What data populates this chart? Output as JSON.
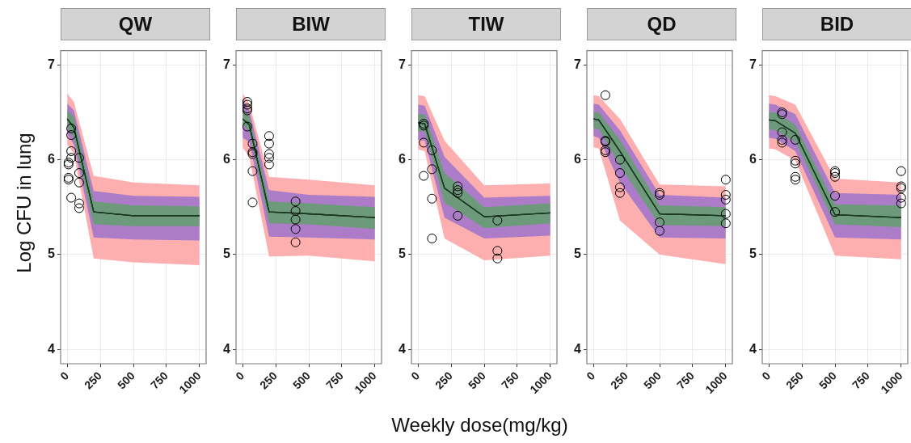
{
  "chart_data": [
    {
      "type": "scatter",
      "title": "QW",
      "ylabel": "Log CFU in lung",
      "xlim": [
        -50,
        1050
      ],
      "xticks": [
        0,
        250,
        500,
        750,
        1000
      ],
      "ylim": [
        3.85,
        7.15
      ],
      "yticks": [
        4,
        5,
        6,
        7
      ],
      "grid": true,
      "series": [
        {
          "type": "line",
          "marker": "none",
          "color": "#1a3a22",
          "x": [
            0,
            50,
            200,
            500,
            1000
          ],
          "values": [
            6.43,
            6.34,
            5.45,
            5.41,
            5.41
          ],
          "lower": [
            6.16,
            6.07,
            4.96,
            4.92,
            4.89
          ],
          "upper": [
            6.7,
            6.61,
            5.83,
            5.76,
            5.73
          ]
        },
        {
          "type": "line",
          "marker": "none",
          "color": "#1a3a22",
          "x": [
            0,
            50,
            200,
            500,
            1000
          ],
          "values": [
            6.43,
            6.34,
            5.45,
            5.41,
            5.41
          ],
          "lower": [
            6.27,
            6.16,
            5.18,
            5.16,
            5.15
          ],
          "upper": [
            6.59,
            6.52,
            5.67,
            5.62,
            5.61
          ]
        },
        {
          "type": "line",
          "marker": "none",
          "color": "#1a3a22",
          "x": [
            0,
            50,
            200,
            500,
            1000
          ],
          "values": [
            6.43,
            6.34,
            5.45,
            5.41,
            5.41
          ],
          "lower": [
            6.34,
            6.23,
            5.32,
            5.3,
            5.3
          ],
          "upper": [
            6.52,
            6.45,
            5.56,
            5.52,
            5.51
          ]
        },
        {
          "type": "scatter",
          "marker": "circle",
          "color": "#000000",
          "x": [
            30,
            30,
            30,
            30,
            10,
            10,
            10,
            10,
            30,
            90,
            90,
            90,
            90,
            90
          ],
          "values": [
            6.33,
            6.26,
            6.09,
            6.02,
            5.97,
            5.95,
            5.81,
            5.79,
            5.6,
            6.02,
            5.86,
            5.76,
            5.54,
            5.49
          ]
        }
      ]
    },
    {
      "type": "scatter",
      "title": "BIW",
      "xlim": [
        -50,
        1050
      ],
      "xticks": [
        0,
        250,
        500,
        750,
        1000
      ],
      "ylim": [
        3.85,
        7.15
      ],
      "yticks": [
        4,
        5,
        6,
        7
      ],
      "grid": true,
      "series": [
        {
          "type": "line",
          "marker": "none",
          "color": "#1a3a22",
          "x": [
            0,
            50,
            200,
            500,
            1000
          ],
          "values": [
            6.43,
            6.37,
            5.45,
            5.43,
            5.39
          ],
          "lower": [
            6.13,
            6.03,
            4.98,
            4.99,
            4.93
          ],
          "upper": [
            6.7,
            6.59,
            5.82,
            5.79,
            5.73
          ]
        },
        {
          "type": "line",
          "marker": "none",
          "color": "#1a3a22",
          "x": [
            0,
            50,
            200,
            500,
            1000
          ],
          "values": [
            6.43,
            6.37,
            5.45,
            5.43,
            5.39
          ],
          "lower": [
            6.23,
            6.19,
            5.19,
            5.18,
            5.16
          ],
          "upper": [
            6.64,
            6.52,
            5.68,
            5.63,
            5.61
          ]
        },
        {
          "type": "line",
          "marker": "none",
          "color": "#1a3a22",
          "x": [
            0,
            50,
            200,
            500,
            1000
          ],
          "values": [
            6.43,
            6.37,
            5.45,
            5.43,
            5.39
          ],
          "lower": [
            6.37,
            6.3,
            5.33,
            5.32,
            5.27
          ],
          "upper": [
            6.53,
            6.46,
            5.56,
            5.54,
            5.5
          ]
        },
        {
          "type": "scatter",
          "marker": "circle",
          "color": "#000000",
          "x": [
            35,
            35,
            35,
            35,
            35,
            75,
            75,
            75,
            75,
            75,
            200,
            200,
            200,
            200,
            200,
            400,
            400,
            400,
            400,
            400
          ],
          "values": [
            6.61,
            6.58,
            6.54,
            6.52,
            6.35,
            6.17,
            6.08,
            6.06,
            5.88,
            5.55,
            6.25,
            6.17,
            6.06,
            6.02,
            5.95,
            5.56,
            5.46,
            5.37,
            5.27,
            5.13
          ]
        }
      ]
    },
    {
      "type": "scatter",
      "title": "TIW",
      "xlabel": "Weekly dose(mg/kg)",
      "xlim": [
        -50,
        1050
      ],
      "xticks": [
        0,
        250,
        500,
        750,
        1000
      ],
      "ylim": [
        3.85,
        7.15
      ],
      "yticks": [
        4,
        5,
        6,
        7
      ],
      "grid": true,
      "series": [
        {
          "type": "line",
          "marker": "none",
          "color": "#1a3a22",
          "x": [
            0,
            50,
            200,
            500,
            1000
          ],
          "values": [
            6.39,
            6.38,
            5.7,
            5.4,
            5.44
          ],
          "lower": [
            6.11,
            6.09,
            5.17,
            4.94,
            4.99
          ],
          "upper": [
            6.68,
            6.67,
            6.2,
            5.73,
            5.75
          ]
        },
        {
          "type": "line",
          "marker": "none",
          "color": "#1a3a22",
          "x": [
            0,
            50,
            200,
            500,
            1000
          ],
          "values": [
            6.39,
            6.38,
            5.7,
            5.4,
            5.44
          ],
          "lower": [
            6.21,
            6.2,
            5.39,
            5.17,
            5.2
          ],
          "upper": [
            6.58,
            6.57,
            6.03,
            5.6,
            5.62
          ]
        },
        {
          "type": "line",
          "marker": "none",
          "color": "#1a3a22",
          "x": [
            0,
            50,
            200,
            500,
            1000
          ],
          "values": [
            6.39,
            6.38,
            5.7,
            5.4,
            5.44
          ],
          "lower": [
            6.3,
            6.3,
            5.55,
            5.28,
            5.33
          ],
          "upper": [
            6.48,
            6.48,
            5.86,
            5.5,
            5.54
          ]
        },
        {
          "type": "scatter",
          "marker": "circle",
          "color": "#000000",
          "x": [
            43,
            43,
            43,
            43,
            105,
            105,
            105,
            105,
            300,
            300,
            300,
            300,
            600,
            600,
            600
          ],
          "values": [
            6.38,
            6.36,
            6.18,
            5.83,
            6.1,
            5.9,
            5.59,
            5.17,
            5.72,
            5.68,
            5.65,
            5.41,
            5.36,
            5.04,
            4.96
          ]
        }
      ]
    },
    {
      "type": "scatter",
      "title": "QD",
      "xlim": [
        -50,
        1050
      ],
      "xticks": [
        0,
        250,
        500,
        750,
        1000
      ],
      "ylim": [
        3.85,
        7.15
      ],
      "yticks": [
        4,
        5,
        6,
        7
      ],
      "grid": true,
      "series": [
        {
          "type": "line",
          "marker": "none",
          "color": "#1a3a22",
          "x": [
            0,
            40,
            200,
            500,
            1000
          ],
          "values": [
            6.43,
            6.42,
            6.09,
            5.43,
            5.41
          ],
          "lower": [
            6.13,
            6.12,
            5.36,
            5.0,
            4.9
          ],
          "upper": [
            6.68,
            6.67,
            6.43,
            5.74,
            5.72
          ]
        },
        {
          "type": "line",
          "marker": "none",
          "color": "#1a3a22",
          "x": [
            0,
            40,
            200,
            500,
            1000
          ],
          "values": [
            6.43,
            6.42,
            6.09,
            5.43,
            5.41
          ],
          "lower": [
            6.25,
            6.23,
            5.76,
            5.18,
            5.17
          ],
          "upper": [
            6.59,
            6.58,
            6.31,
            5.63,
            5.6
          ]
        },
        {
          "type": "line",
          "marker": "none",
          "color": "#1a3a22",
          "x": [
            0,
            40,
            200,
            500,
            1000
          ],
          "values": [
            6.43,
            6.42,
            6.09,
            5.43,
            5.41
          ],
          "lower": [
            6.33,
            6.32,
            5.94,
            5.31,
            5.3
          ],
          "upper": [
            6.5,
            6.5,
            6.21,
            5.52,
            5.5
          ]
        },
        {
          "type": "scatter",
          "marker": "circle",
          "color": "#000000",
          "x": [
            90,
            90,
            90,
            90,
            90,
            200,
            200,
            200,
            200,
            500,
            500,
            500,
            500,
            1000,
            1000,
            1000,
            1000,
            1000
          ],
          "values": [
            6.68,
            6.2,
            6.19,
            6.1,
            6.08,
            6.0,
            5.86,
            5.71,
            5.65,
            5.65,
            5.63,
            5.34,
            5.25,
            5.79,
            5.63,
            5.58,
            5.43,
            5.33
          ]
        }
      ]
    },
    {
      "type": "scatter",
      "title": "BID",
      "xlim": [
        -50,
        1050
      ],
      "xticks": [
        0,
        250,
        500,
        750,
        1000
      ],
      "ylim": [
        3.85,
        7.15
      ],
      "yticks": [
        4,
        5,
        6,
        7
      ],
      "grid": true,
      "series": [
        {
          "type": "line",
          "marker": "none",
          "color": "#1a3a22",
          "x": [
            0,
            50,
            200,
            500,
            1000
          ],
          "values": [
            6.42,
            6.41,
            6.28,
            5.42,
            5.39
          ],
          "lower": [
            6.12,
            6.11,
            5.99,
            4.99,
            4.95
          ],
          "upper": [
            6.68,
            6.67,
            6.58,
            5.8,
            5.76
          ]
        },
        {
          "type": "line",
          "marker": "none",
          "color": "#1a3a22",
          "x": [
            0,
            50,
            200,
            500,
            1000
          ],
          "values": [
            6.42,
            6.41,
            6.28,
            5.42,
            5.39
          ],
          "lower": [
            6.23,
            6.22,
            6.09,
            5.18,
            5.16
          ],
          "upper": [
            6.59,
            6.58,
            6.48,
            5.65,
            5.63
          ]
        },
        {
          "type": "line",
          "marker": "none",
          "color": "#1a3a22",
          "x": [
            0,
            50,
            200,
            500,
            1000
          ],
          "values": [
            6.42,
            6.41,
            6.28,
            5.42,
            5.39
          ],
          "lower": [
            6.32,
            6.31,
            6.19,
            5.32,
            5.29
          ],
          "upper": [
            6.5,
            6.5,
            6.37,
            5.53,
            5.52
          ]
        },
        {
          "type": "scatter",
          "marker": "circle",
          "color": "#000000",
          "x": [
            100,
            100,
            100,
            100,
            100,
            200,
            200,
            200,
            200,
            200,
            500,
            500,
            500,
            500,
            500,
            1000,
            1000,
            1000,
            1000,
            1000
          ],
          "values": [
            6.5,
            6.48,
            6.29,
            6.21,
            6.18,
            6.21,
            5.99,
            5.96,
            5.82,
            5.79,
            5.88,
            5.86,
            5.82,
            5.62,
            5.45,
            5.88,
            5.72,
            5.7,
            5.6,
            5.54
          ]
        }
      ]
    }
  ]
}
